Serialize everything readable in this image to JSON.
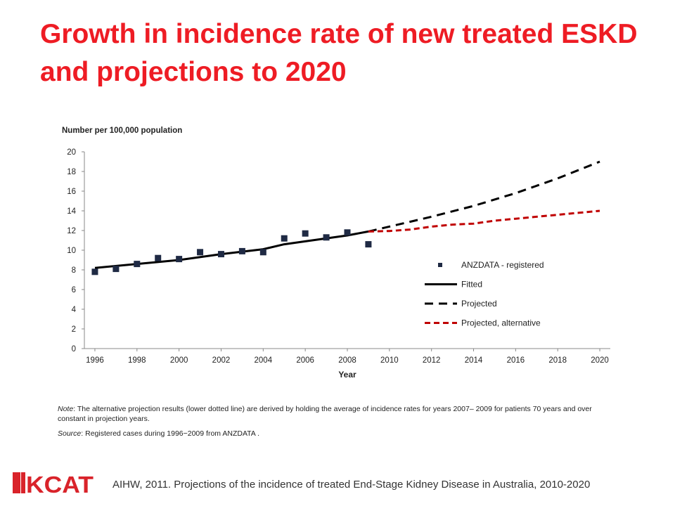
{
  "title": "Growth in incidence rate of new treated ESKD and projections to 2020",
  "chart_data": {
    "type": "line",
    "ylabel": "Number per 100,000 population",
    "xlabel": "Year",
    "xlim": [
      1995.5,
      2020.5
    ],
    "ylim": [
      0,
      20
    ],
    "x_ticks": [
      "1996",
      "1998",
      "2000",
      "2002",
      "2004",
      "2006",
      "2008",
      "2010",
      "2012",
      "2014",
      "2016",
      "2018",
      "2020"
    ],
    "y_ticks": [
      "0",
      "2",
      "4",
      "6",
      "8",
      "10",
      "12",
      "14",
      "16",
      "18",
      "20"
    ],
    "legend_position": "right",
    "series": [
      {
        "name": "ANZDATA - registered",
        "style": "markers",
        "color": "#1f2a44",
        "points": [
          [
            1996,
            7.8
          ],
          [
            1997,
            8.1
          ],
          [
            1998,
            8.6
          ],
          [
            1999,
            9.2
          ],
          [
            2000,
            9.1
          ],
          [
            2001,
            9.8
          ],
          [
            2002,
            9.6
          ],
          [
            2003,
            9.9
          ],
          [
            2004,
            9.8
          ],
          [
            2005,
            11.2
          ],
          [
            2006,
            11.7
          ],
          [
            2007,
            11.3
          ],
          [
            2008,
            11.8
          ],
          [
            2009,
            10.6
          ]
        ]
      },
      {
        "name": "Fitted",
        "style": "solid",
        "color": "#000000",
        "points": [
          [
            1996,
            8.2
          ],
          [
            1998,
            8.6
          ],
          [
            2000,
            9.0
          ],
          [
            2002,
            9.6
          ],
          [
            2004,
            10.1
          ],
          [
            2005,
            10.6
          ],
          [
            2006,
            10.9
          ],
          [
            2008,
            11.5
          ],
          [
            2009,
            11.9
          ]
        ]
      },
      {
        "name": "Projected",
        "style": "dashed",
        "color": "#000000",
        "points": [
          [
            2009,
            11.9
          ],
          [
            2010,
            12.4
          ],
          [
            2012,
            13.4
          ],
          [
            2014,
            14.5
          ],
          [
            2016,
            15.8
          ],
          [
            2018,
            17.3
          ],
          [
            2020,
            19.0
          ]
        ]
      },
      {
        "name": "Projected, alternative",
        "style": "dashed",
        "color": "#c00000",
        "points": [
          [
            2009,
            11.9
          ],
          [
            2010,
            11.95
          ],
          [
            2011,
            12.1
          ],
          [
            2012,
            12.4
          ],
          [
            2013,
            12.6
          ],
          [
            2014,
            12.7
          ],
          [
            2015,
            13.0
          ],
          [
            2016,
            13.2
          ],
          [
            2017,
            13.4
          ],
          [
            2018,
            13.6
          ],
          [
            2019,
            13.8
          ],
          [
            2020,
            14.0
          ]
        ]
      }
    ]
  },
  "note": {
    "note_label": "Note",
    "note_text": ": The alternative projection results (lower dotted line) are derived by holding the average of incidence rates for years 2007– 2009 for patients 70 years and over constant in projection years.",
    "source_label": "Source",
    "source_text": ": Registered cases during 1996−2009 from ANZDATA ."
  },
  "footer": {
    "logo_text": "KCAT",
    "citation": "AIHW, 2011. Projections of the incidence of treated End-Stage Kidney Disease in Australia, 2010-2020"
  },
  "colors": {
    "title": "#ee1c24",
    "logo": "#d9232a"
  }
}
